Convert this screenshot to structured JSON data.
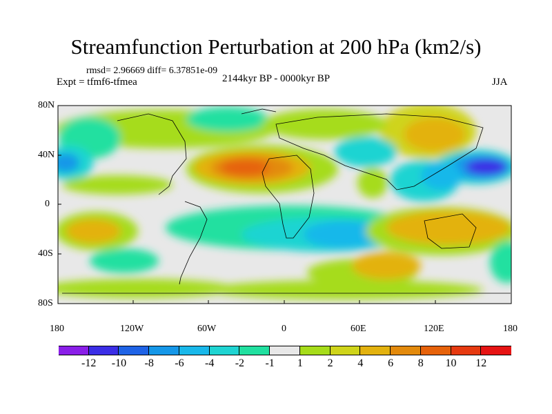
{
  "title": "Streamfunction Perturbation at 200 hPa (km2/s)",
  "stats": "rmsd= 2.96669 diff= 6.37851e-09",
  "experiment": "Expt = tfmf6-tfmea",
  "period": "2144kyr BP - 0000kyr BP",
  "season": "JJA",
  "lat_labels": [
    "80N",
    "40N",
    "0",
    "40S",
    "80S"
  ],
  "lon_labels": [
    "180",
    "120W",
    "60W",
    "0",
    "60E",
    "120E",
    "180"
  ],
  "colorbar": {
    "labels": [
      "-12",
      "-10",
      "-8",
      "-6",
      "-4",
      "-2",
      "-1",
      "1",
      "2",
      "4",
      "6",
      "8",
      "10",
      "12"
    ],
    "colors": [
      "#8a1fe8",
      "#3b2ee6",
      "#1f63e6",
      "#1597e8",
      "#19b8ea",
      "#1fd4d2",
      "#21e0a0",
      "#e8e8e8",
      "#a6dc1a",
      "#cfd41a",
      "#e3b20f",
      "#e38a0c",
      "#e6620a",
      "#e63a10",
      "#e61414"
    ]
  }
}
